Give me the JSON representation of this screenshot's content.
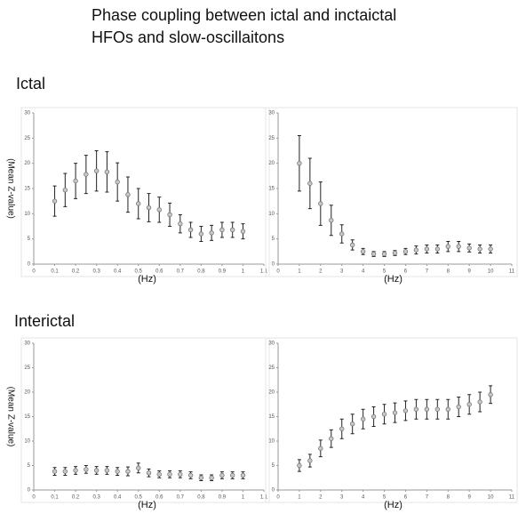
{
  "slide": {
    "title_lines": [
      "Phase coupling between ictal and inctaictal",
      "HFOs and slow-oscillaitons"
    ],
    "sections": [
      "Ictal",
      "Interictal"
    ]
  },
  "chart_data": [
    {
      "type": "scatter",
      "x_label": "(Hz)",
      "y_label": "(Mean Z-value)",
      "x": [
        0.1,
        0.15,
        0.2,
        0.25,
        0.3,
        0.35,
        0.4,
        0.45,
        0.5,
        0.55,
        0.6,
        0.65,
        0.7,
        0.75,
        0.8,
        0.85,
        0.9,
        0.95,
        1.0
      ],
      "values": [
        12.5,
        14.7,
        16.5,
        17.8,
        18.5,
        18.3,
        16.3,
        13.8,
        12,
        11.2,
        10.8,
        9.8,
        8,
        6.8,
        6,
        6.2,
        6.8,
        6.8,
        6.5
      ],
      "errors": [
        3,
        3.3,
        3.5,
        3.8,
        4,
        4,
        3.8,
        3.5,
        3,
        2.8,
        2.5,
        2.3,
        1.8,
        1.5,
        1.5,
        1.5,
        1.5,
        1.5,
        1.5
      ],
      "xlim": [
        0,
        1.1
      ],
      "ylim": [
        0,
        30
      ],
      "xticks": [
        0,
        0.1,
        0.2,
        0.3,
        0.4,
        0.5,
        0.6,
        0.7,
        0.8,
        0.9,
        1,
        1.1
      ],
      "yticks": [
        0,
        5,
        10,
        15,
        20,
        25,
        30
      ]
    },
    {
      "type": "scatter",
      "x_label": "(Hz)",
      "x": [
        1,
        1.5,
        2,
        2.5,
        3,
        3.5,
        4,
        4.5,
        5,
        5.5,
        6,
        6.5,
        7,
        7.5,
        8,
        8.5,
        9,
        9.5,
        10
      ],
      "values": [
        20,
        16,
        12,
        8.7,
        6,
        3.8,
        2.5,
        2,
        2,
        2.2,
        2.5,
        2.8,
        3,
        3,
        3.5,
        3.5,
        3.2,
        3,
        3
      ],
      "errors": [
        5.5,
        5,
        4.3,
        3,
        1.8,
        1,
        0.6,
        0.5,
        0.5,
        0.5,
        0.6,
        0.8,
        0.8,
        0.8,
        1,
        1,
        0.8,
        0.8,
        0.8
      ],
      "xlim": [
        0,
        11
      ],
      "ylim": [
        0,
        30
      ],
      "xticks": [
        0,
        1,
        2,
        3,
        4,
        5,
        6,
        7,
        8,
        9,
        10,
        11
      ],
      "yticks": [
        0,
        5,
        10,
        15,
        20,
        25,
        30
      ]
    },
    {
      "type": "scatter",
      "x_label": "(Hz)",
      "y_label": "(Mean Z-value)",
      "x": [
        0.1,
        0.15,
        0.2,
        0.25,
        0.3,
        0.35,
        0.4,
        0.45,
        0.5,
        0.55,
        0.6,
        0.65,
        0.7,
        0.75,
        0.8,
        0.85,
        0.9,
        0.95,
        1.0
      ],
      "values": [
        3.8,
        3.8,
        4,
        4.2,
        4,
        4,
        3.8,
        3.8,
        4.5,
        3.5,
        3.2,
        3.2,
        3.2,
        3,
        2.5,
        2.5,
        3,
        3,
        3
      ],
      "errors": [
        0.8,
        0.8,
        0.8,
        0.8,
        0.8,
        0.8,
        0.8,
        0.9,
        1,
        0.8,
        0.7,
        0.7,
        0.7,
        0.7,
        0.6,
        0.6,
        0.7,
        0.7,
        0.7
      ],
      "xlim": [
        0,
        1.1
      ],
      "ylim": [
        0,
        30
      ],
      "xticks": [
        0,
        0.1,
        0.2,
        0.3,
        0.4,
        0.5,
        0.6,
        0.7,
        0.8,
        0.9,
        1,
        1.1
      ],
      "yticks": [
        0,
        5,
        10,
        15,
        20,
        25,
        30
      ]
    },
    {
      "type": "scatter",
      "x_label": "(Hz)",
      "x": [
        1,
        1.5,
        2,
        2.5,
        3,
        3.5,
        4,
        4.5,
        5,
        5.5,
        6,
        6.5,
        7,
        7.5,
        8,
        8.5,
        9,
        9.5,
        10
      ],
      "values": [
        5,
        6,
        8.5,
        10.5,
        12.5,
        13.5,
        14.5,
        15,
        15.5,
        15.8,
        16.2,
        16.5,
        16.5,
        16.5,
        16.5,
        17,
        17.5,
        18,
        19.5
      ],
      "errors": [
        1.2,
        1.3,
        1.7,
        1.8,
        2,
        2,
        2,
        2,
        2,
        2,
        2,
        2,
        2,
        2,
        2,
        2,
        2,
        2,
        1.8
      ],
      "xlim": [
        0,
        11
      ],
      "ylim": [
        0,
        30
      ],
      "xticks": [
        0,
        1,
        2,
        3,
        4,
        5,
        6,
        7,
        8,
        9,
        10,
        11
      ],
      "yticks": [
        0,
        5,
        10,
        15,
        20,
        25,
        30
      ]
    }
  ]
}
